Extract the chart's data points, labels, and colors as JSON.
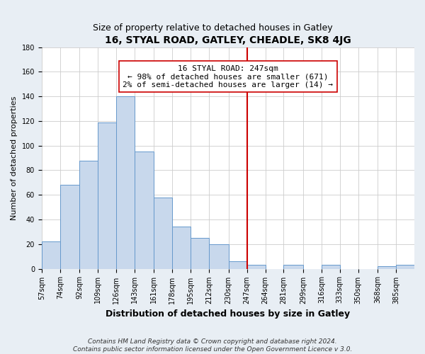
{
  "title": "16, STYAL ROAD, GATLEY, CHEADLE, SK8 4JG",
  "subtitle": "Size of property relative to detached houses in Gatley",
  "xlabel": "Distribution of detached houses by size in Gatley",
  "ylabel": "Number of detached properties",
  "bin_edges": [
    57,
    74,
    92,
    109,
    126,
    143,
    161,
    178,
    195,
    212,
    230,
    247,
    264,
    281,
    299,
    316,
    333,
    350,
    368,
    385,
    402
  ],
  "bar_heights": [
    22,
    68,
    88,
    119,
    140,
    95,
    58,
    34,
    25,
    20,
    6,
    3,
    0,
    3,
    0,
    3,
    0,
    0,
    2,
    3
  ],
  "bar_color": "#c8d8ec",
  "bar_edgecolor": "#6699cc",
  "property_value": 247,
  "vline_color": "#cc0000",
  "annotation_line1": "16 STYAL ROAD: 247sqm",
  "annotation_line2": "← 98% of detached houses are smaller (671)",
  "annotation_line3": "2% of semi-detached houses are larger (14) →",
  "annotation_box_edgecolor": "#cc0000",
  "annotation_box_facecolor": "#ffffff",
  "ylim": [
    0,
    180
  ],
  "yticks": [
    0,
    20,
    40,
    60,
    80,
    100,
    120,
    140,
    160,
    180
  ],
  "footer_line1": "Contains HM Land Registry data © Crown copyright and database right 2024.",
  "footer_line2": "Contains public sector information licensed under the Open Government Licence v 3.0.",
  "fig_bg_color": "#e8eef4",
  "plot_bg_color": "#ffffff",
  "grid_color": "#cccccc",
  "title_fontsize": 10,
  "subtitle_fontsize": 9,
  "xlabel_fontsize": 9,
  "ylabel_fontsize": 8,
  "annotation_fontsize": 8,
  "footer_fontsize": 6.5,
  "tick_fontsize": 7
}
